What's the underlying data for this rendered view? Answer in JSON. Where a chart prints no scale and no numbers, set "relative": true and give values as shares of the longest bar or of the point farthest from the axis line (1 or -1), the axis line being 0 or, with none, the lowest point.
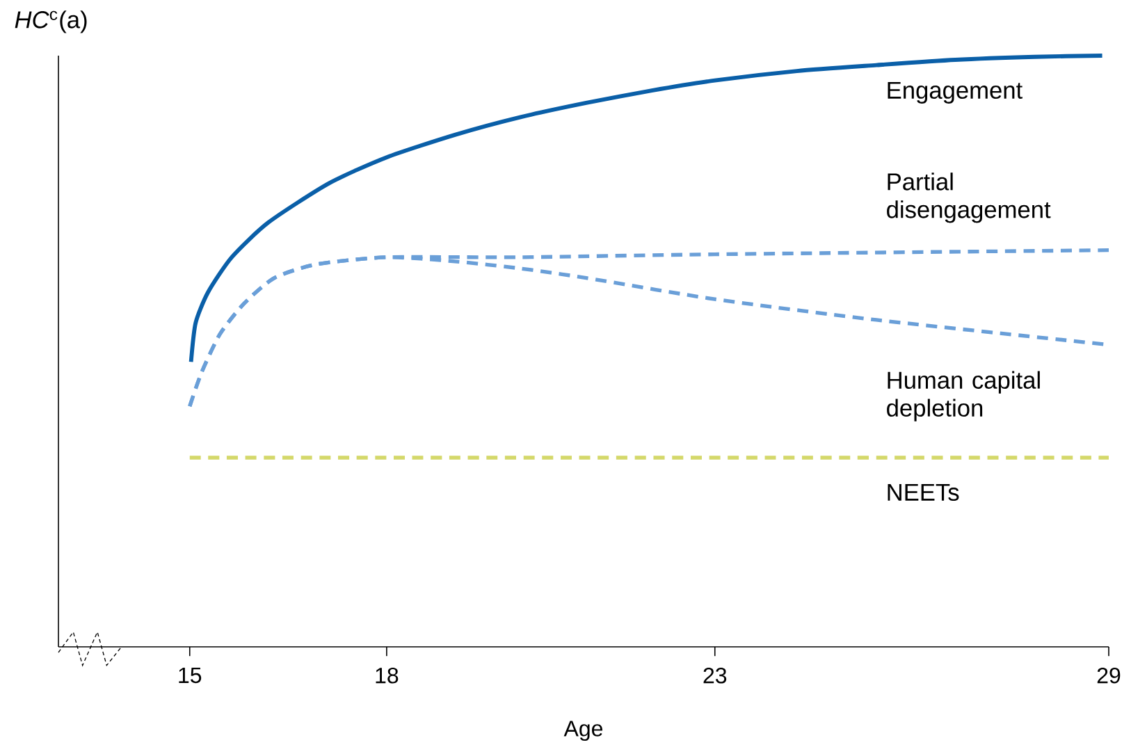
{
  "chart_data": {
    "type": "line",
    "relative": true,
    "ylabel": "*HC*$^{c}$(a)",
    "xlabel": "Age",
    "xlim": [
      13,
      29
    ],
    "xticks": [
      15,
      18,
      23,
      29
    ],
    "grid": false,
    "marker": "none",
    "series": [
      {
        "name": "Engagement",
        "color": "#0a5fa8",
        "line_style": "solid",
        "x": [
          15.02,
          15.09,
          15.28,
          15.64,
          16.2,
          17.12,
          18,
          19.04,
          20.04,
          21.04,
          22.04,
          23,
          24.25,
          25.46,
          26.66,
          27.87,
          28.9
        ],
        "values": [
          0.482,
          0.548,
          0.6,
          0.659,
          0.718,
          0.784,
          0.828,
          0.866,
          0.896,
          0.92,
          0.941,
          0.958,
          0.974,
          0.984,
          0.993,
          0.998,
          1
        ]
      },
      {
        "name": "Partial disengagement",
        "color": "#6a9fd8",
        "line_style": "dashed",
        "x": [
          15,
          15.18,
          15.46,
          15.83,
          16.29,
          16.93,
          18,
          20.04,
          23,
          29
        ],
        "values": [
          0.407,
          0.464,
          0.529,
          0.581,
          0.624,
          0.647,
          0.659,
          0.659,
          0.664,
          0.671
        ]
      },
      {
        "name": "Human capital depletion",
        "color": "#6a9fd8",
        "line_style": "dashed",
        "x": [
          15,
          15.18,
          15.46,
          15.83,
          16.29,
          16.93,
          18,
          19.04,
          20.04,
          21.04,
          23,
          25.46,
          29
        ],
        "values": [
          0.407,
          0.464,
          0.529,
          0.581,
          0.624,
          0.647,
          0.659,
          0.652,
          0.64,
          0.624,
          0.588,
          0.553,
          0.511
        ]
      },
      {
        "name": "NEETs",
        "color": "#d4d86a",
        "line_style": "dashed",
        "x": [
          15,
          29
        ],
        "values": [
          0.32,
          0.32
        ]
      }
    ]
  }
}
